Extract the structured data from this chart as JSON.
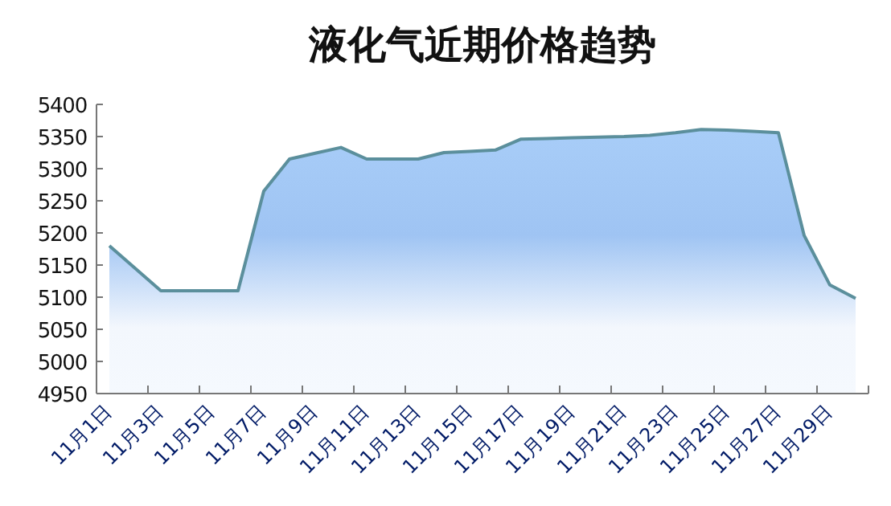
{
  "chart_data": {
    "type": "area",
    "title": "液化气近期价格趋势",
    "categories": [
      "11月1日",
      null,
      "11月3日",
      null,
      "11月5日",
      null,
      "11月7日",
      null,
      "11月9日",
      null,
      "11月11日",
      null,
      "11月13日",
      null,
      "11月15日",
      null,
      "11月17日",
      null,
      "11月19日",
      null,
      "11月21日",
      null,
      "11月23日",
      null,
      "11月25日",
      null,
      "11月27日",
      null,
      "11月29日",
      null
    ],
    "values": [
      5180,
      5145,
      5110,
      5110,
      5110,
      5110,
      5265,
      5315,
      5324,
      5333,
      5315,
      5315,
      5315,
      5325,
      5327,
      5329,
      5346,
      5347,
      5348,
      5349,
      5350,
      5352,
      5356,
      5361,
      5360,
      5358,
      5356,
      5196,
      5119,
      5098
    ],
    "color": "#5b8f9c",
    "ylim": [
      4950,
      5400
    ],
    "yticks": [
      4950,
      5000,
      5050,
      5100,
      5150,
      5200,
      5250,
      5300,
      5350,
      5400
    ],
    "grid": false
  }
}
